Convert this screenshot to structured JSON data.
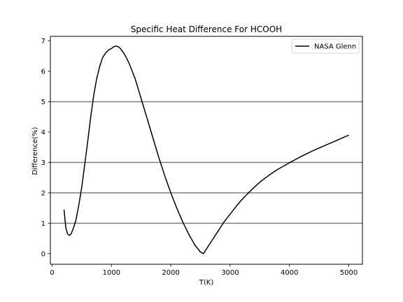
{
  "chart_data": {
    "type": "line",
    "title": "Specific Heat Difference For HCOOH",
    "xlabel": "T(K)",
    "ylabel": "Difference(%)",
    "xlim": [
      -30,
      5230
    ],
    "ylim": [
      -0.35,
      7.15
    ],
    "xticks": [
      0,
      1000,
      2000,
      3000,
      4000,
      5000
    ],
    "yticks": [
      0,
      1,
      2,
      3,
      4,
      5,
      6,
      7
    ],
    "grid": false,
    "legend": "top-right",
    "reference_lines": [
      1,
      2,
      3,
      5
    ],
    "series": [
      {
        "name": "NASA Glenn",
        "color": "#000000",
        "x": [
          200,
          230,
          260,
          290,
          320,
          360,
          400,
          450,
          500,
          550,
          600,
          650,
          700,
          750,
          800,
          850,
          900,
          950,
          1000,
          1030,
          1060,
          1080,
          1100,
          1120,
          1150,
          1200,
          1250,
          1300,
          1400,
          1500,
          1600,
          1700,
          1800,
          1900,
          2000,
          2100,
          2200,
          2300,
          2400,
          2500,
          2550,
          2600,
          2700,
          2800,
          2900,
          3000,
          3100,
          3200,
          3300,
          3400,
          3500,
          3600,
          3700,
          3800,
          3900,
          4000,
          4200,
          4400,
          4600,
          4800,
          5000
        ],
        "y": [
          1.45,
          0.85,
          0.65,
          0.6,
          0.65,
          0.85,
          1.1,
          1.6,
          2.2,
          2.95,
          3.7,
          4.5,
          5.2,
          5.75,
          6.15,
          6.45,
          6.6,
          6.7,
          6.75,
          6.8,
          6.82,
          6.83,
          6.82,
          6.8,
          6.75,
          6.62,
          6.45,
          6.25,
          5.75,
          5.1,
          4.45,
          3.8,
          3.15,
          2.55,
          2.0,
          1.5,
          1.05,
          0.65,
          0.3,
          0.05,
          0.0,
          0.15,
          0.45,
          0.75,
          1.05,
          1.3,
          1.55,
          1.78,
          1.98,
          2.17,
          2.35,
          2.5,
          2.64,
          2.77,
          2.88,
          2.99,
          3.2,
          3.39,
          3.56,
          3.73,
          3.9
        ]
      }
    ]
  }
}
